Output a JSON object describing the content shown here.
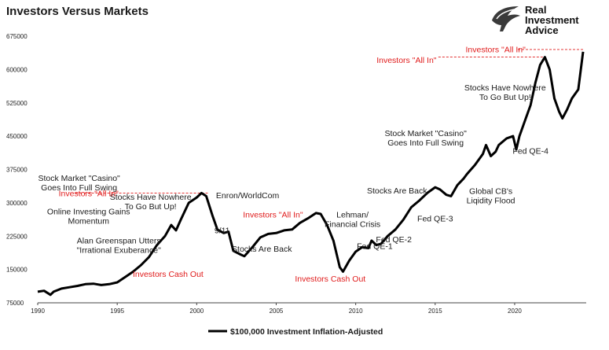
{
  "chart_data": {
    "type": "line",
    "title": "Investors Versus Markets",
    "xlabel": "",
    "ylabel": "",
    "xlim": [
      1990,
      2024.5
    ],
    "ylim": [
      75000,
      675000
    ],
    "y_ticks": [
      "75000",
      "150000",
      "225000",
      "300000",
      "375000",
      "450000",
      "525000",
      "600000",
      "675000"
    ],
    "x_ticks": [
      "1990",
      "1995",
      "2000",
      "2005",
      "2010",
      "2015",
      "2020"
    ],
    "grid": false,
    "legend_position": "bottom-center",
    "line_color": "#000000",
    "annotation_color": "#e01b1b",
    "series": [
      {
        "name": "$100,000 Investment Inflation-Adjusted",
        "x": [
          1990.0,
          1990.4,
          1990.8,
          1991.0,
          1991.5,
          1992.0,
          1992.5,
          1993.0,
          1993.5,
          1994.0,
          1994.5,
          1995.0,
          1995.5,
          1996.0,
          1996.5,
          1997.0,
          1997.5,
          1998.0,
          1998.4,
          1998.7,
          1999.0,
          1999.5,
          2000.0,
          2000.3,
          2000.6,
          2001.0,
          2001.3,
          2001.7,
          2002.0,
          2002.3,
          2002.8,
          2003.0,
          2003.5,
          2004.0,
          2004.5,
          2005.0,
          2005.5,
          2006.0,
          2006.5,
          2007.0,
          2007.5,
          2007.8,
          2008.2,
          2008.6,
          2009.0,
          2009.2,
          2009.6,
          2010.0,
          2010.4,
          2010.8,
          2011.0,
          2011.3,
          2011.6,
          2012.0,
          2012.5,
          2013.0,
          2013.5,
          2014.0,
          2014.5,
          2015.0,
          2015.3,
          2015.7,
          2016.0,
          2016.4,
          2016.8,
          2017.0,
          2017.5,
          2018.0,
          2018.2,
          2018.5,
          2018.8,
          2019.0,
          2019.5,
          2019.9,
          2020.1,
          2020.3,
          2020.7,
          2021.0,
          2021.3,
          2021.6,
          2021.9,
          2022.2,
          2022.5,
          2022.8,
          2023.0,
          2023.3,
          2023.6,
          2024.0,
          2024.3
        ],
        "values": [
          100000,
          102000,
          93000,
          100000,
          107000,
          110000,
          113000,
          117000,
          118000,
          115000,
          117000,
          121000,
          133000,
          145000,
          160000,
          178000,
          205000,
          225000,
          250000,
          238000,
          262000,
          300000,
          312000,
          322000,
          315000,
          270000,
          240000,
          232000,
          235000,
          192000,
          183000,
          180000,
          200000,
          222000,
          230000,
          232000,
          238000,
          240000,
          255000,
          265000,
          277000,
          275000,
          250000,
          215000,
          155000,
          145000,
          170000,
          190000,
          200000,
          198000,
          215000,
          205000,
          208000,
          225000,
          240000,
          262000,
          290000,
          305000,
          322000,
          335000,
          330000,
          318000,
          315000,
          340000,
          355000,
          365000,
          385000,
          410000,
          430000,
          405000,
          415000,
          430000,
          445000,
          450000,
          420000,
          450000,
          490000,
          520000,
          570000,
          610000,
          628000,
          600000,
          535000,
          505000,
          490000,
          510000,
          535000,
          555000,
          640000
        ]
      }
    ],
    "annotations": [
      {
        "x": 1992.6,
        "y": 349000,
        "lines": [
          "Stock Market \"Casino\"",
          "Goes Into Full Swing"
        ],
        "color": "dark",
        "anchor": "middle"
      },
      {
        "x": 1997.1,
        "y": 307000,
        "lines": [
          "Stocks Have Nowhere",
          "To Go But Up!"
        ],
        "color": "dark",
        "anchor": "middle"
      },
      {
        "x": 1993.2,
        "y": 274000,
        "lines": [
          "Online Investing Gains",
          "Momentum"
        ],
        "color": "dark",
        "anchor": "middle"
      },
      {
        "x": 1995.1,
        "y": 209000,
        "lines": [
          "Alan Greenspan Utters",
          "\"Irrational Exuberance\""
        ],
        "color": "dark",
        "anchor": "middle"
      },
      {
        "x": 2001.6,
        "y": 232000,
        "lines": [
          "9/11"
        ],
        "color": "dark",
        "anchor": "middle"
      },
      {
        "x": 2004.1,
        "y": 190000,
        "lines": [
          "Stocks Are Back"
        ],
        "color": "dark",
        "anchor": "middle"
      },
      {
        "x": 2003.2,
        "y": 310000,
        "lines": [
          "Enron/WorldCom"
        ],
        "color": "dark",
        "anchor": "middle"
      },
      {
        "x": 2009.8,
        "y": 267000,
        "lines": [
          "Lehman/",
          "Financial Crisis"
        ],
        "color": "dark",
        "anchor": "middle"
      },
      {
        "x": 2011.2,
        "y": 196000,
        "lines": [
          "Fed QE-1"
        ],
        "color": "dark",
        "anchor": "middle"
      },
      {
        "x": 2012.4,
        "y": 211000,
        "lines": [
          "Fed QE-2"
        ],
        "color": "dark",
        "anchor": "middle"
      },
      {
        "x": 2015.0,
        "y": 258000,
        "lines": [
          "Fed QE-3"
        ],
        "color": "dark",
        "anchor": "middle"
      },
      {
        "x": 2012.6,
        "y": 321000,
        "lines": [
          "Stocks Are Back"
        ],
        "color": "dark",
        "anchor": "middle"
      },
      {
        "x": 2018.5,
        "y": 320000,
        "lines": [
          "Global CB's",
          "Liqidity Flood"
        ],
        "color": "dark",
        "anchor": "middle"
      },
      {
        "x": 2014.4,
        "y": 450000,
        "lines": [
          "Stock Market \"Casino\"",
          "Goes Into Full Swing"
        ],
        "color": "dark",
        "anchor": "middle"
      },
      {
        "x": 2021.0,
        "y": 410000,
        "lines": [
          "Fed QE-4"
        ],
        "color": "dark",
        "anchor": "middle"
      },
      {
        "x": 2019.4,
        "y": 553000,
        "lines": [
          "Stocks Have Nowhere",
          "To Go But Up!"
        ],
        "color": "dark",
        "anchor": "middle"
      },
      {
        "x": 1998.2,
        "y": 133000,
        "lines": [
          "Investors Cash Out"
        ],
        "color": "red",
        "anchor": "middle"
      },
      {
        "x": 2008.4,
        "y": 123000,
        "lines": [
          "Investors Cash Out"
        ],
        "color": "red",
        "anchor": "middle"
      },
      {
        "x": 1993.2,
        "y": 315000,
        "lines": [
          "Investors \"All In\""
        ],
        "color": "red",
        "anchor": "middle"
      },
      {
        "x": 2004.8,
        "y": 267000,
        "lines": [
          "Investors \"All In\""
        ],
        "color": "red",
        "anchor": "middle"
      },
      {
        "x": 2013.2,
        "y": 615000,
        "lines": [
          "Investors \"All In\""
        ],
        "color": "red",
        "anchor": "middle"
      },
      {
        "x": 2018.8,
        "y": 639000,
        "lines": [
          "Investors \"All In\""
        ],
        "color": "red",
        "anchor": "middle"
      }
    ],
    "reference_lines": [
      {
        "x1": 1992.4,
        "x2": 2000.7,
        "y": 322000
      },
      {
        "x1": 2007.3,
        "x2": 2007.8,
        "y": 275000
      },
      {
        "x1": 2015.2,
        "x2": 2021.9,
        "y": 628000
      },
      {
        "x1": 2020.2,
        "x2": 2024.4,
        "y": 645000
      }
    ]
  },
  "logo": {
    "line1": "Real",
    "line2": "Investment",
    "line3": "Advice"
  }
}
